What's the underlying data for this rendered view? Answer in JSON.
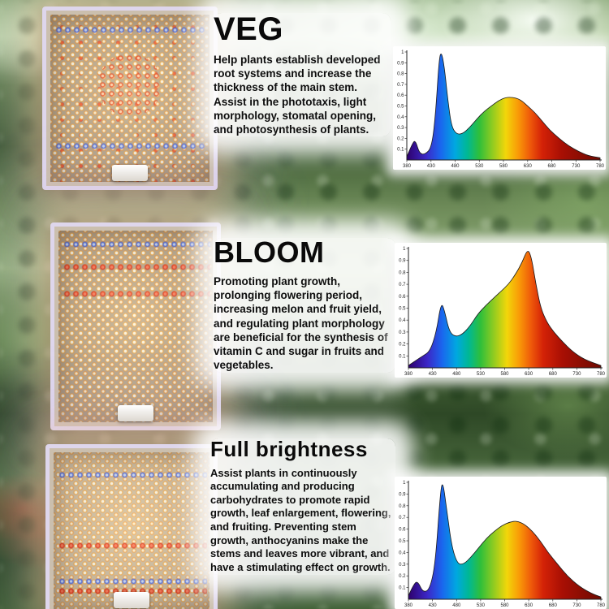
{
  "sections": [
    {
      "title": "VEG",
      "description": "Help plants establish developed root systems and increase the thickness of the main stem. Assist in the phototaxis, light morphology, stomatal opening, and photosynthesis of plants."
    },
    {
      "title": "BLOOM",
      "description": "Promoting plant growth, prolonging flowering period, increasing melon and fruit yield, and regulating plant morphology are beneficial for the synthesis of vitamin C and sugar in fruits and vegetables."
    },
    {
      "title": "Full brightness",
      "description": "Assist plants in continuously accumulating and producing carbohydrates to promote rapid growth, leaf enlargement, flowering, and fruiting. Preventing stem growth, anthocyanins make the stems and leaves more vibrant, and have a stimulating effect on growth."
    }
  ],
  "chart_data": [
    {
      "type": "area",
      "name": "veg-spectrum",
      "xlim": [
        380,
        780
      ],
      "ylim": [
        0,
        1
      ],
      "x_ticks": [
        380,
        430,
        480,
        530,
        580,
        630,
        680,
        730,
        780
      ],
      "y_ticks": [
        "0.1",
        "0.2",
        "0.3",
        "0.4",
        "0.5",
        "0.6",
        "0.7",
        "0.8",
        "0.9",
        "1"
      ],
      "points": [
        [
          380,
          0.03
        ],
        [
          392,
          0.16
        ],
        [
          398,
          0.18
        ],
        [
          406,
          0.06
        ],
        [
          418,
          0.05
        ],
        [
          432,
          0.12
        ],
        [
          440,
          0.45
        ],
        [
          447,
          0.95
        ],
        [
          452,
          1.0
        ],
        [
          458,
          0.85
        ],
        [
          465,
          0.55
        ],
        [
          472,
          0.32
        ],
        [
          482,
          0.24
        ],
        [
          495,
          0.24
        ],
        [
          510,
          0.3
        ],
        [
          525,
          0.38
        ],
        [
          540,
          0.45
        ],
        [
          555,
          0.5
        ],
        [
          570,
          0.55
        ],
        [
          585,
          0.58
        ],
        [
          600,
          0.58
        ],
        [
          615,
          0.56
        ],
        [
          630,
          0.5
        ],
        [
          645,
          0.44
        ],
        [
          660,
          0.36
        ],
        [
          675,
          0.28
        ],
        [
          695,
          0.2
        ],
        [
          715,
          0.13
        ],
        [
          735,
          0.08
        ],
        [
          755,
          0.04
        ],
        [
          780,
          0.02
        ]
      ]
    },
    {
      "type": "area",
      "name": "bloom-spectrum",
      "xlim": [
        380,
        780
      ],
      "ylim": [
        0,
        1
      ],
      "x_ticks": [
        380,
        430,
        480,
        530,
        580,
        630,
        680,
        730,
        780
      ],
      "y_ticks": [
        "0.1",
        "0.2",
        "0.3",
        "0.4",
        "0.5",
        "0.6",
        "0.7",
        "0.8",
        "0.9",
        "1"
      ],
      "points": [
        [
          380,
          0.02
        ],
        [
          395,
          0.06
        ],
        [
          410,
          0.1
        ],
        [
          425,
          0.14
        ],
        [
          438,
          0.3
        ],
        [
          448,
          0.55
        ],
        [
          455,
          0.48
        ],
        [
          465,
          0.3
        ],
        [
          478,
          0.26
        ],
        [
          492,
          0.28
        ],
        [
          508,
          0.35
        ],
        [
          524,
          0.45
        ],
        [
          540,
          0.52
        ],
        [
          556,
          0.58
        ],
        [
          572,
          0.64
        ],
        [
          588,
          0.7
        ],
        [
          602,
          0.78
        ],
        [
          616,
          0.88
        ],
        [
          628,
          1.0
        ],
        [
          636,
          0.92
        ],
        [
          645,
          0.7
        ],
        [
          655,
          0.5
        ],
        [
          668,
          0.38
        ],
        [
          682,
          0.3
        ],
        [
          700,
          0.22
        ],
        [
          720,
          0.14
        ],
        [
          745,
          0.07
        ],
        [
          780,
          0.02
        ]
      ]
    },
    {
      "type": "area",
      "name": "full-brightness-spectrum",
      "xlim": [
        380,
        780
      ],
      "ylim": [
        0,
        1
      ],
      "x_ticks": [
        380,
        430,
        480,
        530,
        580,
        630,
        680,
        730,
        780
      ],
      "y_ticks": [
        "0.1",
        "0.2",
        "0.3",
        "0.4",
        "0.5",
        "0.6",
        "0.7",
        "0.8",
        "0.9",
        "1"
      ],
      "points": [
        [
          380,
          0.03
        ],
        [
          392,
          0.14
        ],
        [
          400,
          0.15
        ],
        [
          410,
          0.06
        ],
        [
          424,
          0.08
        ],
        [
          436,
          0.3
        ],
        [
          447,
          0.95
        ],
        [
          452,
          1.0
        ],
        [
          460,
          0.75
        ],
        [
          470,
          0.45
        ],
        [
          482,
          0.3
        ],
        [
          495,
          0.3
        ],
        [
          510,
          0.36
        ],
        [
          526,
          0.44
        ],
        [
          542,
          0.52
        ],
        [
          558,
          0.58
        ],
        [
          574,
          0.63
        ],
        [
          590,
          0.66
        ],
        [
          606,
          0.67
        ],
        [
          622,
          0.64
        ],
        [
          638,
          0.58
        ],
        [
          654,
          0.5
        ],
        [
          670,
          0.4
        ],
        [
          690,
          0.3
        ],
        [
          710,
          0.2
        ],
        [
          735,
          0.11
        ],
        [
          760,
          0.05
        ],
        [
          780,
          0.02
        ]
      ]
    }
  ],
  "spectrum_gradient": [
    {
      "at": 380,
      "color": "#2e006c"
    },
    {
      "at": 420,
      "color": "#3b28c8"
    },
    {
      "at": 450,
      "color": "#1a66ee"
    },
    {
      "at": 480,
      "color": "#00a8e0"
    },
    {
      "at": 505,
      "color": "#00b894"
    },
    {
      "at": 530,
      "color": "#2fbf3a"
    },
    {
      "at": 560,
      "color": "#9acd1e"
    },
    {
      "at": 585,
      "color": "#f2d60a"
    },
    {
      "at": 610,
      "color": "#f99b07"
    },
    {
      "at": 635,
      "color": "#ef5a0a"
    },
    {
      "at": 660,
      "color": "#d42207"
    },
    {
      "at": 700,
      "color": "#a80f04"
    },
    {
      "at": 780,
      "color": "#6e0b02"
    }
  ],
  "colors": {
    "title_text": "#0a0a0a",
    "body_text": "#111111",
    "chart_bg": "#ffffff",
    "panel_frame": "#ded6ec",
    "led_warm": "#ffbe5a",
    "led_red": "#e8321a",
    "led_blue": "#3f6cff"
  }
}
